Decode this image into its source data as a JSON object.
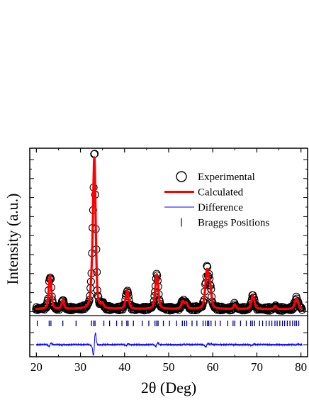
{
  "chart_data": {
    "type": "line",
    "xlabel": "2θ (Deg)",
    "ylabel": "Intensity (a.u.)",
    "xlim": [
      18.5,
      81.5
    ],
    "ylim": [
      -0.12,
      1.0
    ],
    "x_ticks": [
      20,
      30,
      40,
      50,
      60,
      70,
      80
    ],
    "grid": false,
    "legend_position": "top-right",
    "legend": [
      {
        "label": "Experimental",
        "marker": "circle"
      },
      {
        "label": "Calculated",
        "marker": "thick-line"
      },
      {
        "label": "Difference",
        "marker": "thin-line"
      },
      {
        "label": "Braggs Positions",
        "marker": "tick"
      }
    ],
    "colors": {
      "experimental": "#000000",
      "calculated": "#ff0000",
      "difference": "#0000ff",
      "bragg": "#000080"
    },
    "background_level": 0.02,
    "peaks": [
      {
        "x": 23.1,
        "height": 0.22,
        "width": 0.35
      },
      {
        "x": 26.0,
        "height": 0.06,
        "width": 0.3
      },
      {
        "x": 32.6,
        "height": 0.12,
        "width": 0.35
      },
      {
        "x": 33.15,
        "height": 0.98,
        "width": 0.35
      },
      {
        "x": 35.0,
        "height": 0.03,
        "width": 0.3
      },
      {
        "x": 40.6,
        "height": 0.12,
        "width": 0.4
      },
      {
        "x": 47.3,
        "height": 0.23,
        "width": 0.4
      },
      {
        "x": 53.2,
        "height": 0.05,
        "width": 0.35
      },
      {
        "x": 54.0,
        "height": 0.04,
        "width": 0.35
      },
      {
        "x": 58.7,
        "height": 0.25,
        "width": 0.45
      },
      {
        "x": 59.4,
        "height": 0.12,
        "width": 0.35
      },
      {
        "x": 65.0,
        "height": 0.03,
        "width": 0.3
      },
      {
        "x": 69.1,
        "height": 0.09,
        "width": 0.4
      },
      {
        "x": 74.2,
        "height": 0.02,
        "width": 0.3
      },
      {
        "x": 79.0,
        "height": 0.07,
        "width": 0.45
      }
    ],
    "bragg_positions": [
      20.2,
      22.9,
      23.3,
      26.0,
      29.0,
      32.5,
      33.0,
      33.3,
      35.3,
      36.6,
      38.2,
      39.4,
      40.5,
      40.8,
      42.0,
      44.0,
      45.5,
      46.9,
      47.3,
      47.6,
      48.8,
      50.2,
      51.8,
      53.1,
      53.6,
      54.1,
      55.3,
      56.4,
      57.8,
      58.4,
      58.8,
      59.1,
      59.6,
      60.6,
      61.7,
      63.4,
      64.6,
      65.0,
      66.3,
      67.6,
      68.6,
      69.0,
      69.5,
      70.6,
      71.3,
      72.1,
      72.8,
      73.4,
      74.1,
      74.6,
      75.2,
      75.8,
      76.3,
      76.9,
      77.5,
      78.1,
      78.6,
      79.0,
      79.5
    ]
  }
}
